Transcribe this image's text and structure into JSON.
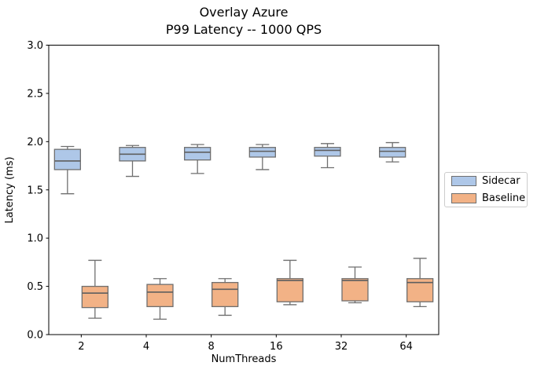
{
  "figure": {
    "title_line1": "Overlay Azure",
    "title_line2": "P99 Latency -- 1000 QPS"
  },
  "axes": {
    "xlabel": "NumThreads",
    "ylabel": "Latency (ms)"
  },
  "legend": {
    "items": [
      {
        "label": "Sidecar",
        "color": "#aec7e8"
      },
      {
        "label": "Baseline",
        "color": "#f2b286"
      }
    ]
  },
  "chart_data": {
    "type": "boxplot",
    "title": "Overlay Azure\nP99 Latency -- 1000 QPS",
    "xlabel": "NumThreads",
    "ylabel": "Latency (ms)",
    "categories": [
      "2",
      "4",
      "8",
      "16",
      "32",
      "64"
    ],
    "ylim": [
      0.0,
      3.0
    ],
    "yticks": [
      0.0,
      0.5,
      1.0,
      1.5,
      2.0,
      2.5,
      3.0
    ],
    "ytick_labels": [
      "0.0",
      "0.5",
      "1.0",
      "1.5",
      "2.0",
      "2.5",
      "3.0"
    ],
    "grid": false,
    "legend_position": "outside-center-right",
    "edge_color": "#6f6f6f",
    "median_color": "#5f5f5f",
    "series": [
      {
        "name": "Sidecar",
        "fill_color": "#aec7e8",
        "boxes": [
          {
            "whislo": 1.46,
            "q1": 1.71,
            "med": 1.8,
            "q3": 1.92,
            "whishi": 1.95
          },
          {
            "whislo": 1.64,
            "q1": 1.8,
            "med": 1.87,
            "q3": 1.94,
            "whishi": 1.96
          },
          {
            "whislo": 1.67,
            "q1": 1.81,
            "med": 1.89,
            "q3": 1.94,
            "whishi": 1.97
          },
          {
            "whislo": 1.71,
            "q1": 1.84,
            "med": 1.9,
            "q3": 1.94,
            "whishi": 1.97
          },
          {
            "whislo": 1.73,
            "q1": 1.85,
            "med": 1.91,
            "q3": 1.94,
            "whishi": 1.98
          },
          {
            "whislo": 1.79,
            "q1": 1.84,
            "med": 1.9,
            "q3": 1.94,
            "whishi": 1.99
          }
        ]
      },
      {
        "name": "Baseline",
        "fill_color": "#f2b286",
        "boxes": [
          {
            "whislo": 0.17,
            "q1": 0.28,
            "med": 0.43,
            "q3": 0.5,
            "whishi": 0.77
          },
          {
            "whislo": 0.16,
            "q1": 0.29,
            "med": 0.44,
            "q3": 0.52,
            "whishi": 0.58
          },
          {
            "whislo": 0.2,
            "q1": 0.29,
            "med": 0.47,
            "q3": 0.54,
            "whishi": 0.58
          },
          {
            "whislo": 0.31,
            "q1": 0.34,
            "med": 0.56,
            "q3": 0.58,
            "whishi": 0.77
          },
          {
            "whislo": 0.33,
            "q1": 0.35,
            "med": 0.56,
            "q3": 0.58,
            "whishi": 0.7
          },
          {
            "whislo": 0.29,
            "q1": 0.34,
            "med": 0.54,
            "q3": 0.58,
            "whishi": 0.79
          }
        ]
      }
    ]
  }
}
